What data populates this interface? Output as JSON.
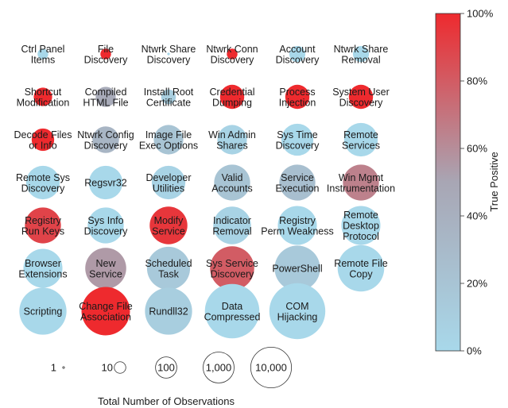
{
  "chart_data": {
    "type": "bubble-grid",
    "colorbar": {
      "title": "True Positive",
      "ticks": [
        "0%",
        "20%",
        "40%",
        "60%",
        "80%",
        "100%"
      ],
      "range": [
        0,
        1
      ],
      "low_color": "#a8d8ea",
      "mid_color": "#a8a6b4",
      "high_color": "#ee2a2e"
    },
    "size_legend": {
      "title": "Total Number of Observations",
      "items": [
        {
          "label": "1",
          "value": 1
        },
        {
          "label": "10",
          "value": 10
        },
        {
          "label": "100",
          "value": 100
        },
        {
          "label": "1,000",
          "value": 1000
        },
        {
          "label": "10,000",
          "value": 10000
        }
      ]
    },
    "rows": [
      [
        {
          "label": "Ctrl Panel\nItems",
          "count": 4,
          "tp": 0.0
        },
        {
          "label": "File\nDiscovery",
          "count": 4,
          "tp": 1.0
        },
        {
          "label": "Ntwrk Share\nDiscovery",
          "count": 1,
          "tp": 0.0
        },
        {
          "label": "Ntwrk Conn\nDiscovery",
          "count": 4,
          "tp": 1.0
        },
        {
          "label": "Account\nDiscovery",
          "count": 10,
          "tp": 0.0
        },
        {
          "label": "Ntwrk Share\nRemoval",
          "count": 10,
          "tp": 0.0
        }
      ],
      [
        {
          "label": "Shortcut\nModification",
          "count": 15,
          "tp": 1.0
        },
        {
          "label": "Compiled\nHTML File",
          "count": 20,
          "tp": 0.45
        },
        {
          "label": "Install Root\nCertificate",
          "count": 8,
          "tp": 0.1
        },
        {
          "label": "Credential\nDumping",
          "count": 40,
          "tp": 1.0
        },
        {
          "label": "Process\nInjection",
          "count": 40,
          "tp": 1.0
        },
        {
          "label": "System User\nDiscovery",
          "count": 40,
          "tp": 1.0
        }
      ],
      [
        {
          "label": "Decode Files\nor Info",
          "count": 30,
          "tp": 1.0
        },
        {
          "label": "Ntwrk Config\nDiscovery",
          "count": 60,
          "tp": 0.35
        },
        {
          "label": "Image File\nExec Options",
          "count": 100,
          "tp": 0.2
        },
        {
          "label": "Win Admin\nShares",
          "count": 100,
          "tp": 0.05
        },
        {
          "label": "Sys Time\nDiscovery",
          "count": 150,
          "tp": 0.0
        },
        {
          "label": "Remote\nServices",
          "count": 200,
          "tp": 0.0
        }
      ],
      [
        {
          "label": "Remote Sys\nDiscovery",
          "count": 200,
          "tp": 0.0
        },
        {
          "label": "Regsvr32",
          "count": 200,
          "tp": 0.0
        },
        {
          "label": "Developer\nUtilities",
          "count": 200,
          "tp": 0.05
        },
        {
          "label": "Valid\nAccounts",
          "count": 300,
          "tp": 0.2
        },
        {
          "label": "Service\nExecution",
          "count": 300,
          "tp": 0.25
        },
        {
          "label": "Win Mgmt\nInstrumentation",
          "count": 300,
          "tp": 0.65
        }
      ],
      [
        {
          "label": "Registry\nRun Keys",
          "count": 300,
          "tp": 0.9
        },
        {
          "label": "Sys Info\nDiscovery",
          "count": 300,
          "tp": 0.0
        },
        {
          "label": "Modify\nService",
          "count": 400,
          "tp": 0.95
        },
        {
          "label": "Indicator\nRemoval",
          "count": 400,
          "tp": 0.05
        },
        {
          "label": "Registry\nPerm Weakness",
          "count": 500,
          "tp": 0.0
        },
        {
          "label": "Remote\nDesktop\nProtocol",
          "count": 500,
          "tp": 0.0
        }
      ],
      [
        {
          "label": "Browser\nExtensions",
          "count": 500,
          "tp": 0.0
        },
        {
          "label": "New\nService",
          "count": 700,
          "tp": 0.55
        },
        {
          "label": "Scheduled\nTask",
          "count": 1000,
          "tp": 0.15
        },
        {
          "label": "Sys Service\nDiscovery",
          "count": 1200,
          "tp": 0.8
        },
        {
          "label": "PowerShell",
          "count": 1500,
          "tp": 0.15
        },
        {
          "label": "Remote File\nCopy",
          "count": 1800,
          "tp": 0.0
        }
      ],
      [
        {
          "label": "Scripting",
          "count": 2000,
          "tp": 0.0
        },
        {
          "label": "Change File\nAssociation",
          "count": 2500,
          "tp": 1.0
        },
        {
          "label": "Rundll32",
          "count": 2000,
          "tp": 0.1
        },
        {
          "label": "Data\nCompressed",
          "count": 7000,
          "tp": 0.0
        },
        {
          "label": "COM\nHijacking",
          "count": 9000,
          "tp": 0.0
        }
      ]
    ]
  }
}
